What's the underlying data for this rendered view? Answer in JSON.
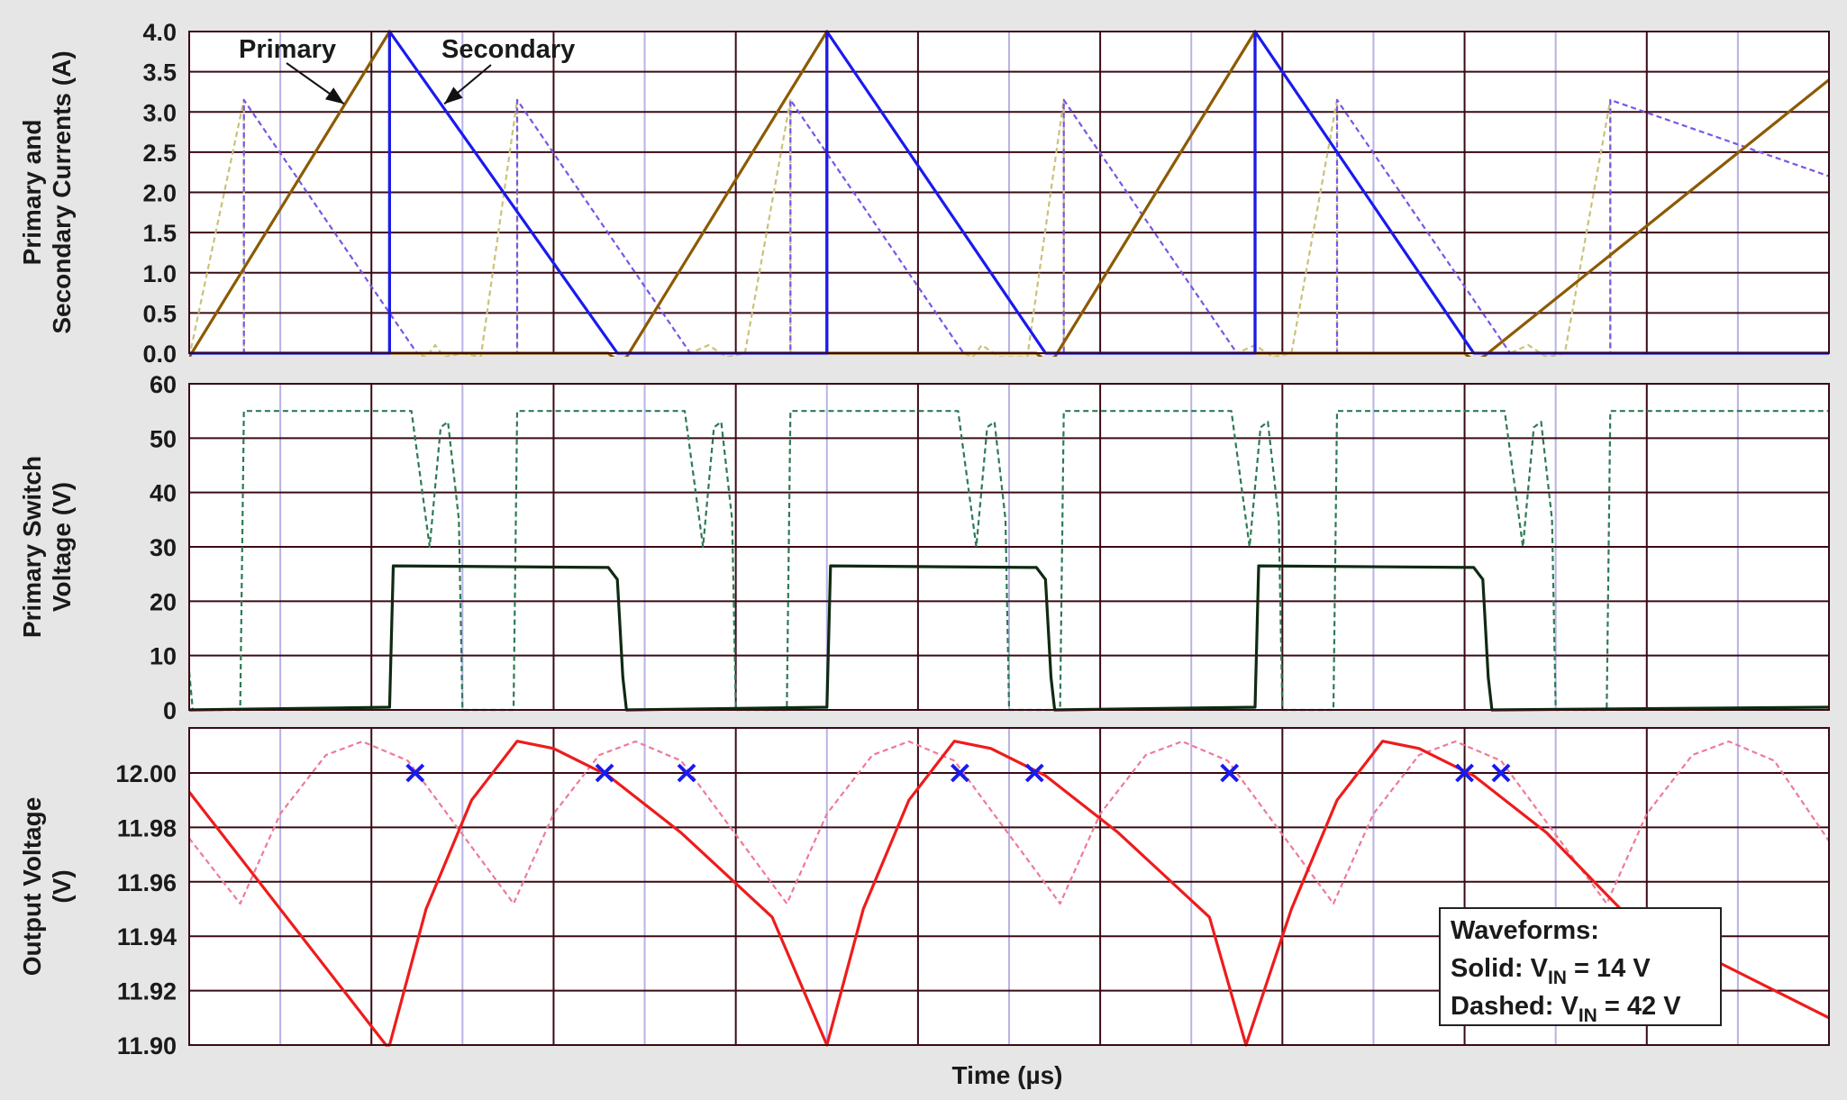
{
  "colors": {
    "grid": "#3a0a14",
    "minor_grid": "#b7b3e6",
    "primary_solid": "#8c5a00",
    "primary_dashed": "#c9c27a",
    "secondary_solid": "#1a1aee",
    "secondary_dashed": "#7a55e6",
    "switch_solid": "#0f2a12",
    "switch_dashed": "#2e7a55",
    "output_solid": "#ee1c1c",
    "output_dashed": "#ee7a99",
    "marker": "#1a1aee"
  },
  "xlabel": "Time (µs)",
  "chart_data": [
    {
      "type": "line",
      "ylabel_lines": [
        "Primary and",
        "Secondary Currents (A)"
      ],
      "yticks": [
        "4.0",
        "3.5",
        "3.0",
        "2.5",
        "2.0",
        "1.5",
        "1.0",
        "0.5",
        "0.0"
      ],
      "ylim": [
        -0.1,
        4.0
      ],
      "xlim": [
        0,
        9
      ],
      "annotations": [
        {
          "text": "Primary",
          "arrow_to": [
            0.85,
            3.1
          ]
        },
        {
          "text": "Secondary",
          "arrow_to": [
            1.4,
            3.1
          ]
        }
      ],
      "series": [
        {
          "style": "solid",
          "color_key": "primary_solid",
          "points": [
            [
              0,
              -0.05
            ],
            [
              1.1,
              4.0
            ],
            [
              1.1,
              0
            ],
            [
              2.3,
              0
            ],
            [
              2.35,
              -0.1
            ],
            [
              2.4,
              -0.05
            ],
            [
              3.5,
              4.0
            ],
            [
              3.5,
              0
            ],
            [
              4.65,
              0
            ],
            [
              4.7,
              -0.1
            ],
            [
              4.75,
              -0.05
            ],
            [
              5.85,
              4.0
            ],
            [
              5.85,
              0
            ],
            [
              7.0,
              0
            ],
            [
              7.05,
              -0.1
            ],
            [
              7.1,
              -0.05
            ],
            [
              9.0,
              3.4
            ]
          ]
        },
        {
          "style": "solid",
          "color_key": "secondary_solid",
          "points": [
            [
              0,
              0
            ],
            [
              1.1,
              0
            ],
            [
              1.1,
              4.0
            ],
            [
              2.35,
              0
            ],
            [
              3.5,
              0
            ],
            [
              3.5,
              4.0
            ],
            [
              4.7,
              0
            ],
            [
              5.85,
              0
            ],
            [
              5.85,
              4.0
            ],
            [
              7.05,
              0
            ],
            [
              9.0,
              0
            ]
          ]
        },
        {
          "style": "dashed",
          "color_key": "primary_dashed",
          "points": [
            [
              0,
              -0.05
            ],
            [
              0.3,
              3.15
            ],
            [
              0.3,
              0
            ],
            [
              1.25,
              0
            ],
            [
              1.3,
              -0.05
            ],
            [
              1.35,
              0.1
            ],
            [
              1.4,
              -0.05
            ],
            [
              1.5,
              0
            ],
            [
              1.6,
              -0.05
            ],
            [
              1.8,
              3.15
            ],
            [
              1.8,
              0
            ],
            [
              2.75,
              0
            ],
            [
              2.85,
              0.1
            ],
            [
              2.95,
              -0.05
            ],
            [
              3.05,
              0
            ],
            [
              3.3,
              3.15
            ],
            [
              3.3,
              0
            ],
            [
              4.25,
              0
            ],
            [
              4.3,
              -0.05
            ],
            [
              4.35,
              0.1
            ],
            [
              4.45,
              -0.05
            ],
            [
              4.6,
              -0.05
            ],
            [
              4.8,
              3.15
            ],
            [
              4.8,
              0
            ],
            [
              5.75,
              0
            ],
            [
              5.85,
              0.1
            ],
            [
              5.95,
              -0.05
            ],
            [
              6.05,
              0
            ],
            [
              6.3,
              3.15
            ],
            [
              6.3,
              0
            ],
            [
              7.25,
              0
            ],
            [
              7.35,
              0.1
            ],
            [
              7.45,
              -0.05
            ],
            [
              7.55,
              0
            ],
            [
              7.8,
              3.15
            ],
            [
              7.8,
              0
            ],
            [
              9,
              0
            ]
          ]
        },
        {
          "style": "dashed",
          "color_key": "secondary_dashed",
          "points": [
            [
              0,
              0
            ],
            [
              0.3,
              0
            ],
            [
              0.3,
              3.15
            ],
            [
              1.25,
              0
            ],
            [
              1.8,
              0
            ],
            [
              1.8,
              3.15
            ],
            [
              2.75,
              0
            ],
            [
              3.3,
              0
            ],
            [
              3.3,
              3.15
            ],
            [
              4.25,
              0
            ],
            [
              4.8,
              0
            ],
            [
              4.8,
              3.15
            ],
            [
              5.75,
              0
            ],
            [
              6.3,
              0
            ],
            [
              6.3,
              3.15
            ],
            [
              7.25,
              0
            ],
            [
              7.8,
              0
            ],
            [
              7.8,
              3.15
            ],
            [
              9.0,
              2.2
            ]
          ]
        }
      ]
    },
    {
      "type": "line",
      "ylabel_lines": [
        "Primary Switch",
        "Voltage (V)"
      ],
      "yticks": [
        "60",
        "50",
        "40",
        "30",
        "20",
        "10",
        "0"
      ],
      "ylim": [
        -1,
        60
      ],
      "xlim": [
        0,
        9
      ],
      "series": [
        {
          "style": "solid",
          "color_key": "switch_solid",
          "points": [
            [
              0,
              0
            ],
            [
              1.1,
              0.5
            ],
            [
              1.12,
              26.5
            ],
            [
              2.3,
              26.2
            ],
            [
              2.35,
              24
            ],
            [
              2.38,
              6
            ],
            [
              2.4,
              0
            ],
            [
              3.5,
              0.5
            ],
            [
              3.52,
              26.5
            ],
            [
              4.65,
              26.2
            ],
            [
              4.7,
              24
            ],
            [
              4.73,
              6
            ],
            [
              4.75,
              0
            ],
            [
              5.85,
              0.5
            ],
            [
              5.87,
              26.5
            ],
            [
              7.05,
              26.2
            ],
            [
              7.1,
              24
            ],
            [
              7.13,
              6
            ],
            [
              7.15,
              0
            ],
            [
              9.0,
              0.5
            ]
          ]
        },
        {
          "style": "dashed",
          "color_key": "switch_dashed",
          "points": [
            [
              0,
              7
            ],
            [
              0.02,
              0
            ],
            [
              0.28,
              0
            ],
            [
              0.3,
              55
            ],
            [
              1.22,
              55
            ],
            [
              1.28,
              40
            ],
            [
              1.32,
              30
            ],
            [
              1.38,
              52
            ],
            [
              1.42,
              53
            ],
            [
              1.48,
              35
            ],
            [
              1.5,
              0
            ],
            [
              1.78,
              0
            ],
            [
              1.8,
              55
            ],
            [
              2.72,
              55
            ],
            [
              2.78,
              40
            ],
            [
              2.82,
              30
            ],
            [
              2.88,
              52
            ],
            [
              2.92,
              53
            ],
            [
              2.98,
              35
            ],
            [
              3.0,
              0
            ],
            [
              3.28,
              0
            ],
            [
              3.3,
              55
            ],
            [
              4.22,
              55
            ],
            [
              4.28,
              40
            ],
            [
              4.32,
              30
            ],
            [
              4.38,
              52
            ],
            [
              4.42,
              53
            ],
            [
              4.48,
              35
            ],
            [
              4.5,
              0
            ],
            [
              4.78,
              0
            ],
            [
              4.8,
              55
            ],
            [
              5.72,
              55
            ],
            [
              5.78,
              40
            ],
            [
              5.82,
              30
            ],
            [
              5.88,
              52
            ],
            [
              5.92,
              53
            ],
            [
              5.98,
              35
            ],
            [
              6.0,
              0
            ],
            [
              6.28,
              0
            ],
            [
              6.3,
              55
            ],
            [
              7.22,
              55
            ],
            [
              7.28,
              40
            ],
            [
              7.32,
              30
            ],
            [
              7.38,
              52
            ],
            [
              7.42,
              53
            ],
            [
              7.48,
              35
            ],
            [
              7.5,
              0
            ],
            [
              7.78,
              0
            ],
            [
              7.8,
              55
            ],
            [
              9.0,
              55
            ]
          ]
        }
      ]
    },
    {
      "type": "line",
      "ylabel_lines": [
        "Output Voltage",
        "(V)"
      ],
      "yticks": [
        "12.00",
        "11.98",
        "11.96",
        "11.94",
        "11.92",
        "11.90"
      ],
      "ylim": [
        11.9,
        12.015
      ],
      "xlim": [
        0,
        9
      ],
      "legend_box": {
        "title": "Waveforms:",
        "lines": [
          {
            "prefix": "Solid: V",
            "sub": "IN",
            "suffix": " = 14 V"
          },
          {
            "prefix": "Dashed: V",
            "sub": "IN",
            "suffix": " = 42 V"
          }
        ],
        "position": "bottom-right"
      },
      "markers": [
        [
          1.24,
          12.0
        ],
        [
          2.28,
          12.0
        ],
        [
          2.73,
          12.0
        ],
        [
          4.23,
          12.0
        ],
        [
          4.64,
          12.0
        ],
        [
          5.71,
          12.0
        ],
        [
          7.0,
          12.0
        ],
        [
          7.2,
          12.0
        ]
      ],
      "series": [
        {
          "style": "solid",
          "color_key": "output_solid",
          "points": [
            [
              0,
              11.993
            ],
            [
              1.08,
              11.9
            ],
            [
              1.1,
              11.9
            ],
            [
              1.3,
              11.95
            ],
            [
              1.55,
              11.99
            ],
            [
              1.8,
              12.0117
            ],
            [
              2.0,
              12.009
            ],
            [
              2.3,
              11.999
            ],
            [
              2.7,
              11.978
            ],
            [
              3.2,
              11.947
            ],
            [
              3.5,
              11.9
            ],
            [
              3.7,
              11.95
            ],
            [
              3.95,
              11.99
            ],
            [
              4.2,
              12.0117
            ],
            [
              4.4,
              12.009
            ],
            [
              4.7,
              11.999
            ],
            [
              5.1,
              11.978
            ],
            [
              5.6,
              11.947
            ],
            [
              5.8,
              11.9
            ],
            [
              6.05,
              11.95
            ],
            [
              6.3,
              11.99
            ],
            [
              6.55,
              12.0117
            ],
            [
              6.75,
              12.009
            ],
            [
              7.05,
              11.999
            ],
            [
              7.45,
              11.978
            ],
            [
              7.9,
              11.947
            ],
            [
              9.0,
              11.91
            ]
          ]
        },
        {
          "style": "dashed",
          "color_key": "output_dashed",
          "points": [
            [
              0,
              11.976
            ],
            [
              0.28,
              11.952
            ],
            [
              0.5,
              11.985
            ],
            [
              0.75,
              12.0066
            ],
            [
              0.95,
              12.0116
            ],
            [
              1.2,
              12.0045
            ],
            [
              1.78,
              11.952
            ],
            [
              2.0,
              11.985
            ],
            [
              2.25,
              12.0066
            ],
            [
              2.45,
              12.0116
            ],
            [
              2.7,
              12.0045
            ],
            [
              3.28,
              11.952
            ],
            [
              3.5,
              11.985
            ],
            [
              3.75,
              12.0066
            ],
            [
              3.95,
              12.0116
            ],
            [
              4.2,
              12.0045
            ],
            [
              4.78,
              11.952
            ],
            [
              5.0,
              11.985
            ],
            [
              5.25,
              12.0066
            ],
            [
              5.45,
              12.0116
            ],
            [
              5.7,
              12.0045
            ],
            [
              6.28,
              11.952
            ],
            [
              6.5,
              11.985
            ],
            [
              6.75,
              12.0066
            ],
            [
              6.95,
              12.0116
            ],
            [
              7.2,
              12.0045
            ],
            [
              7.78,
              11.952
            ],
            [
              8.0,
              11.985
            ],
            [
              8.25,
              12.0066
            ],
            [
              8.45,
              12.0116
            ],
            [
              8.7,
              12.0045
            ],
            [
              9.0,
              11.975
            ]
          ]
        }
      ]
    }
  ]
}
